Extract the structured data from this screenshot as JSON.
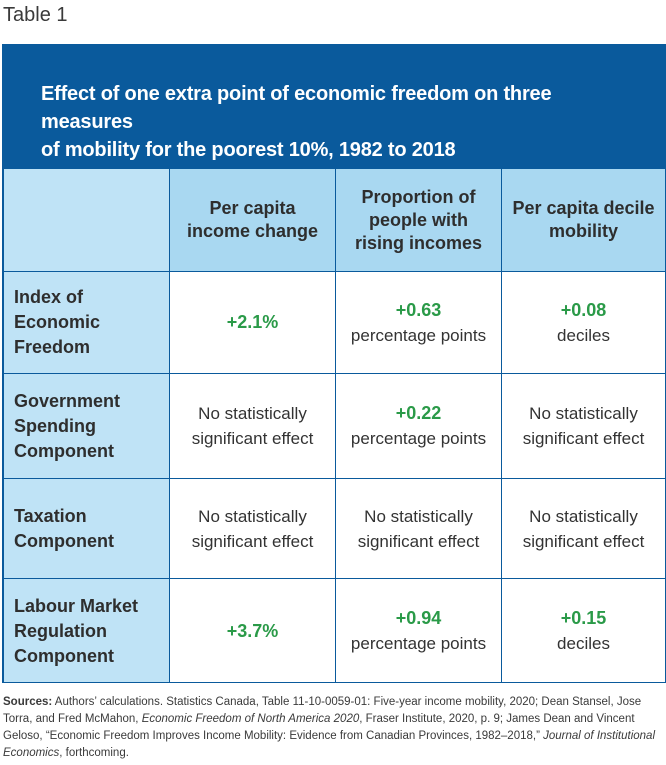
{
  "caption": "Table 1",
  "title_line1": "Effect of one extra point of economic freedom on three measures",
  "title_line2": "of mobility for the poorest 10%, 1982 to 2018",
  "columns": [
    "",
    "Per capita income change",
    "Proportion of people with rising incomes",
    "Per capita decile mobility"
  ],
  "rows": [
    {
      "label": "Index of Economic Freedom",
      "cells": [
        {
          "value": "+2.1%",
          "unit": ""
        },
        {
          "value": "+0.63",
          "unit": "percentage points"
        },
        {
          "value": "+0.08",
          "unit": "deciles"
        }
      ]
    },
    {
      "label": "Government Spending Component",
      "cells": [
        {
          "text": "No statistically significant effect"
        },
        {
          "value": "+0.22",
          "unit": "percentage points"
        },
        {
          "text": "No statistically significant effect"
        }
      ]
    },
    {
      "label": "Taxation Component",
      "cells": [
        {
          "text": "No statistically significant effect"
        },
        {
          "text": "No statistically significant effect"
        },
        {
          "text": "No statistically significant effect"
        }
      ]
    },
    {
      "label": "Labour Market Regulation Component",
      "cells": [
        {
          "value": "+3.7%",
          "unit": ""
        },
        {
          "value": "+0.94",
          "unit": "percentage points"
        },
        {
          "value": "+0.15",
          "unit": "deciles"
        }
      ]
    }
  ],
  "sources": {
    "label": "Sources:",
    "part1": " Authors’ calculations. Statistics Canada, Table 11-10-0059-01: Five-year income mobility, 2020; Dean Stansel, Jose Torra, and Fred McMahon, ",
    "italic1": "Economic Freedom of North America 2020",
    "part2": ", Fraser Institute, 2020, p. 9; James Dean and Vincent Geloso, “Economic Freedom Improves Income Mobility: Evidence from Canadian Provinces, 1982–2018,” ",
    "italic2": "Journal of Institutional Economics",
    "part3": ", forthcoming."
  },
  "colors": {
    "header_blue": "#0a5a9c",
    "cell_light_blue": "#a9d8f1",
    "row_label_blue": "#bfe3f6",
    "positive_green": "#2a9a48"
  }
}
